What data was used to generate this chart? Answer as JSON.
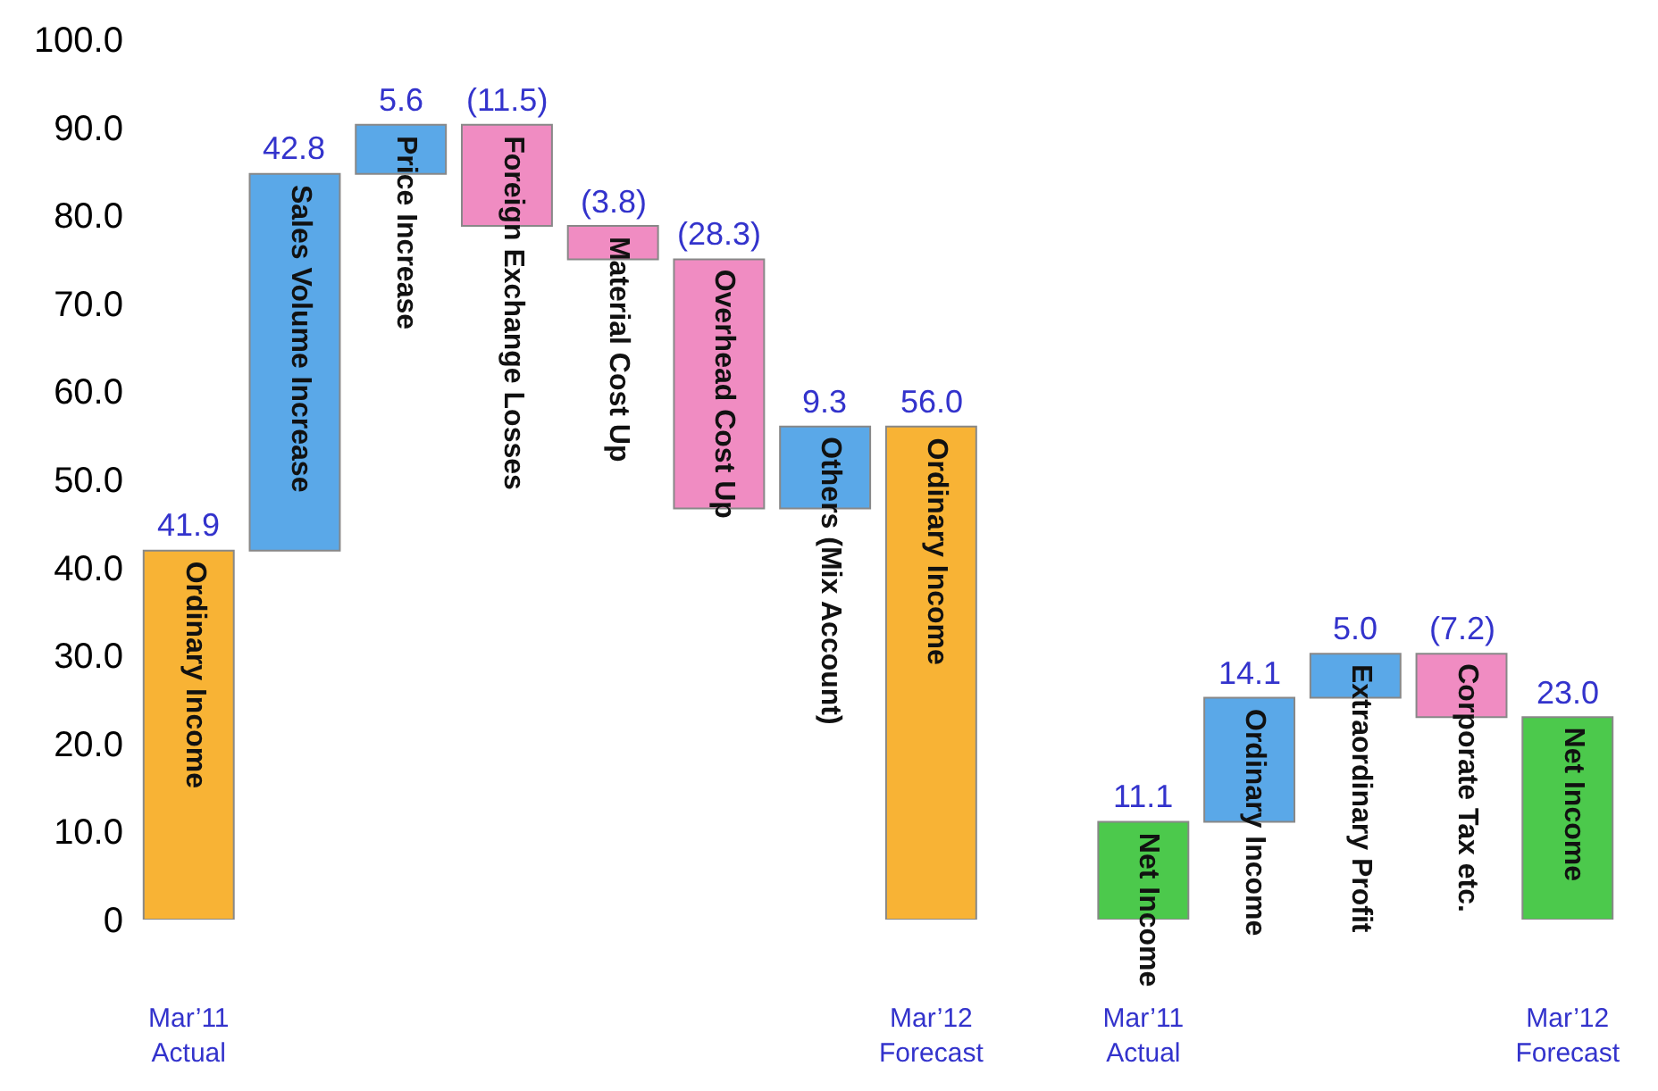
{
  "chart_data": {
    "type": "bar",
    "categories": [
      "Mar’11\nActual",
      null,
      null,
      null,
      null,
      null,
      null,
      "Mar’12\nForecast",
      null,
      "Mar’11\nActual",
      null,
      null,
      null,
      "Mar’12\nForecast"
    ],
    "ylim": [
      0,
      100
    ],
    "yticks": [
      0,
      {
        "value": 10,
        "label": "10.0"
      },
      {
        "value": 20,
        "label": "20.0"
      },
      {
        "value": 30,
        "label": "30.0"
      },
      {
        "value": 40,
        "label": "40.0"
      },
      {
        "value": 50,
        "label": "50.0"
      },
      {
        "value": 60,
        "label": "60.0"
      },
      {
        "value": 70,
        "label": "70.0"
      },
      {
        "value": 80,
        "label": "80.0"
      },
      {
        "value": 90,
        "label": "90.0"
      },
      {
        "value": 100,
        "label": "100.0"
      }
    ],
    "series": [
      {
        "name": "Ordinary Income",
        "color": "#f8b335",
        "values": [
          41.9,
          null,
          null,
          null,
          null,
          null,
          null,
          null,
          null,
          null,
          null,
          null,
          null,
          null
        ],
        "base": [
          0,
          null,
          null,
          null,
          null,
          null,
          null,
          null,
          null,
          null,
          null,
          null,
          null,
          null
        ],
        "value_labels": [
          "41.9",
          null,
          null,
          null,
          null,
          null,
          null,
          null,
          null,
          null,
          null,
          null,
          null,
          null
        ]
      },
      {
        "name": "Sales Volume Increase",
        "color": "#5aa8e8",
        "values": [
          null,
          42.8,
          null,
          null,
          null,
          null,
          null,
          null,
          null,
          null,
          null,
          null,
          null,
          null
        ],
        "base": [
          null,
          41.9,
          null,
          null,
          null,
          null,
          null,
          null,
          null,
          null,
          null,
          null,
          null,
          null
        ],
        "value_labels": [
          null,
          "42.8",
          null,
          null,
          null,
          null,
          null,
          null,
          null,
          null,
          null,
          null,
          null,
          null
        ]
      },
      {
        "name": "Price Increase",
        "color": "#5aa8e8",
        "values": [
          null,
          null,
          5.6,
          null,
          null,
          null,
          null,
          null,
          null,
          null,
          null,
          null,
          null,
          null
        ],
        "base": [
          null,
          null,
          84.7,
          null,
          null,
          null,
          null,
          null,
          null,
          null,
          null,
          null,
          null,
          null
        ],
        "value_labels": [
          null,
          null,
          "5.6",
          null,
          null,
          null,
          null,
          null,
          null,
          null,
          null,
          null,
          null,
          null
        ]
      },
      {
        "name": "Foreign Exchange Losses",
        "color": "#f08cc2",
        "values": [
          null,
          null,
          null,
          -11.5,
          null,
          null,
          null,
          null,
          null,
          null,
          null,
          null,
          null,
          null
        ],
        "base": [
          null,
          null,
          null,
          90.3,
          null,
          null,
          null,
          null,
          null,
          null,
          null,
          null,
          null,
          null
        ],
        "value_labels": [
          null,
          null,
          null,
          "(11.5)",
          null,
          null,
          null,
          null,
          null,
          null,
          null,
          null,
          null,
          null
        ]
      },
      {
        "name": "Material Cost Up",
        "color": "#f08cc2",
        "values": [
          null,
          null,
          null,
          null,
          -3.8,
          null,
          null,
          null,
          null,
          null,
          null,
          null,
          null,
          null
        ],
        "base": [
          null,
          null,
          null,
          null,
          78.8,
          null,
          null,
          null,
          null,
          null,
          null,
          null,
          null,
          null
        ],
        "value_labels": [
          null,
          null,
          null,
          null,
          "(3.8)",
          null,
          null,
          null,
          null,
          null,
          null,
          null,
          null,
          null
        ]
      },
      {
        "name": "Overhead Cost Up",
        "color": "#f08cc2",
        "values": [
          null,
          null,
          null,
          null,
          null,
          -28.3,
          null,
          null,
          null,
          null,
          null,
          null,
          null,
          null
        ],
        "base": [
          null,
          null,
          null,
          null,
          null,
          75.0,
          null,
          null,
          null,
          null,
          null,
          null,
          null,
          null
        ],
        "value_labels": [
          null,
          null,
          null,
          null,
          null,
          "(28.3)",
          null,
          null,
          null,
          null,
          null,
          null,
          null,
          null
        ]
      },
      {
        "name": "Others (Mix Account)",
        "color": "#5aa8e8",
        "values": [
          null,
          null,
          null,
          null,
          null,
          null,
          9.3,
          null,
          null,
          null,
          null,
          null,
          null,
          null
        ],
        "base": [
          null,
          null,
          null,
          null,
          null,
          null,
          46.7,
          null,
          null,
          null,
          null,
          null,
          null,
          null
        ],
        "value_labels": [
          null,
          null,
          null,
          null,
          null,
          null,
          "9.3",
          null,
          null,
          null,
          null,
          null,
          null,
          null
        ]
      },
      {
        "name": "Ordinary Income",
        "color": "#f8b335",
        "values": [
          null,
          null,
          null,
          null,
          null,
          null,
          null,
          56.0,
          null,
          null,
          null,
          null,
          null,
          null
        ],
        "base": [
          null,
          null,
          null,
          null,
          null,
          null,
          null,
          0,
          null,
          null,
          null,
          null,
          null,
          null
        ],
        "value_labels": [
          null,
          null,
          null,
          null,
          null,
          null,
          null,
          "56.0",
          null,
          null,
          null,
          null,
          null,
          null
        ]
      },
      {
        "name": "Net Income",
        "color": "#4cc94c",
        "values": [
          null,
          null,
          null,
          null,
          null,
          null,
          null,
          null,
          null,
          11.1,
          null,
          null,
          null,
          null
        ],
        "base": [
          null,
          null,
          null,
          null,
          null,
          null,
          null,
          null,
          null,
          0,
          null,
          null,
          null,
          null
        ],
        "value_labels": [
          null,
          null,
          null,
          null,
          null,
          null,
          null,
          null,
          null,
          "11.1",
          null,
          null,
          null,
          null
        ]
      },
      {
        "name": "Ordinary Income",
        "color": "#5aa8e8",
        "values": [
          null,
          null,
          null,
          null,
          null,
          null,
          null,
          null,
          null,
          null,
          14.1,
          null,
          null,
          null
        ],
        "base": [
          null,
          null,
          null,
          null,
          null,
          null,
          null,
          null,
          null,
          null,
          11.1,
          null,
          null,
          null
        ],
        "value_labels": [
          null,
          null,
          null,
          null,
          null,
          null,
          null,
          null,
          null,
          null,
          "14.1",
          null,
          null,
          null
        ]
      },
      {
        "name": "Extraordinary Profit",
        "color": "#5aa8e8",
        "values": [
          null,
          null,
          null,
          null,
          null,
          null,
          null,
          null,
          null,
          null,
          null,
          5.0,
          null,
          null
        ],
        "base": [
          null,
          null,
          null,
          null,
          null,
          null,
          null,
          null,
          null,
          null,
          null,
          25.2,
          null,
          null
        ],
        "value_labels": [
          null,
          null,
          null,
          null,
          null,
          null,
          null,
          null,
          null,
          null,
          null,
          "5.0",
          null,
          null
        ]
      },
      {
        "name": "Corporate Tax etc.",
        "color": "#f08cc2",
        "values": [
          null,
          null,
          null,
          null,
          null,
          null,
          null,
          null,
          null,
          null,
          null,
          null,
          -7.2,
          null
        ],
        "base": [
          null,
          null,
          null,
          null,
          null,
          null,
          null,
          null,
          null,
          null,
          null,
          null,
          30.2,
          null
        ],
        "value_labels": [
          null,
          null,
          null,
          null,
          null,
          null,
          null,
          null,
          null,
          null,
          null,
          null,
          "(7.2)",
          null
        ]
      },
      {
        "name": "Net Income",
        "color": "#4cc94c",
        "values": [
          null,
          null,
          null,
          null,
          null,
          null,
          null,
          null,
          null,
          null,
          null,
          null,
          null,
          23.0
        ],
        "base": [
          null,
          null,
          null,
          null,
          null,
          null,
          null,
          null,
          null,
          null,
          null,
          null,
          null,
          0
        ],
        "value_labels": [
          null,
          null,
          null,
          null,
          null,
          null,
          null,
          null,
          null,
          null,
          null,
          null,
          null,
          "23.0"
        ]
      }
    ]
  }
}
